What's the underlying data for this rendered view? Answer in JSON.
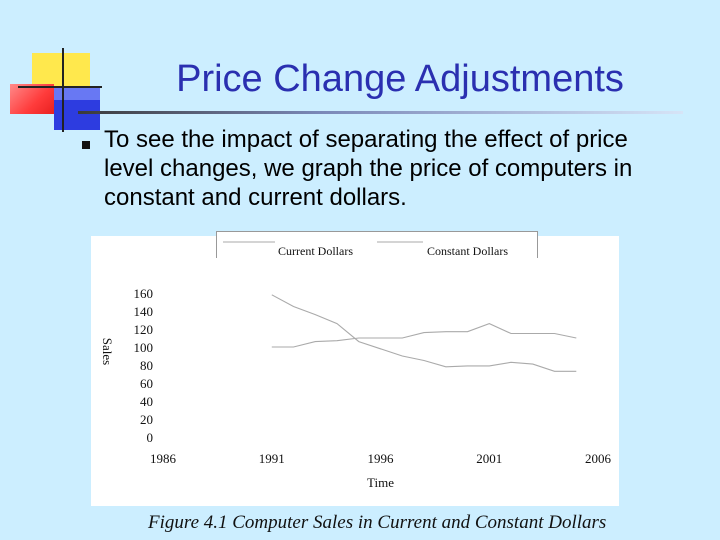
{
  "slide": {
    "title": "Price Change Adjustments",
    "bullet": "To see the impact of separating the effect of price level changes, we graph the price of computers in constant and current dollars."
  },
  "figure": {
    "caption": "Figure 4.1 Computer Sales in Current and Constant Dollars"
  },
  "chart_data": {
    "type": "line",
    "xlabel": "Time",
    "ylabel": "Sales",
    "xlim": [
      1986,
      2006
    ],
    "ylim": [
      0,
      160
    ],
    "x_ticks": [
      "1986",
      "1991",
      "1996",
      "2001",
      "2006"
    ],
    "y_ticks": [
      "160",
      "140",
      "120",
      "100",
      "80",
      "60",
      "40",
      "20",
      "0"
    ],
    "legend": [
      "Current Dollars",
      "Constant Dollars"
    ],
    "legend_position": "top",
    "grid": false,
    "series": [
      {
        "name": "Current Dollars",
        "x": [
          1991,
          1992,
          1993,
          1994,
          1995,
          1996,
          1997,
          1998,
          1999,
          2000,
          2001,
          2002,
          2003,
          2004,
          2005
        ],
        "values": [
          100,
          100,
          106,
          107,
          110,
          110,
          110,
          116,
          117,
          117,
          126,
          115,
          115,
          115,
          110
        ]
      },
      {
        "name": "Constant Dollars",
        "x": [
          1991,
          1992,
          1993,
          1994,
          1995,
          1996,
          1997,
          1998,
          1999,
          2000,
          2001,
          2002,
          2003,
          2004,
          2005
        ],
        "values": [
          158,
          145,
          136,
          126,
          106,
          98,
          90,
          85,
          78,
          79,
          79,
          83,
          81,
          73,
          73
        ]
      }
    ]
  }
}
